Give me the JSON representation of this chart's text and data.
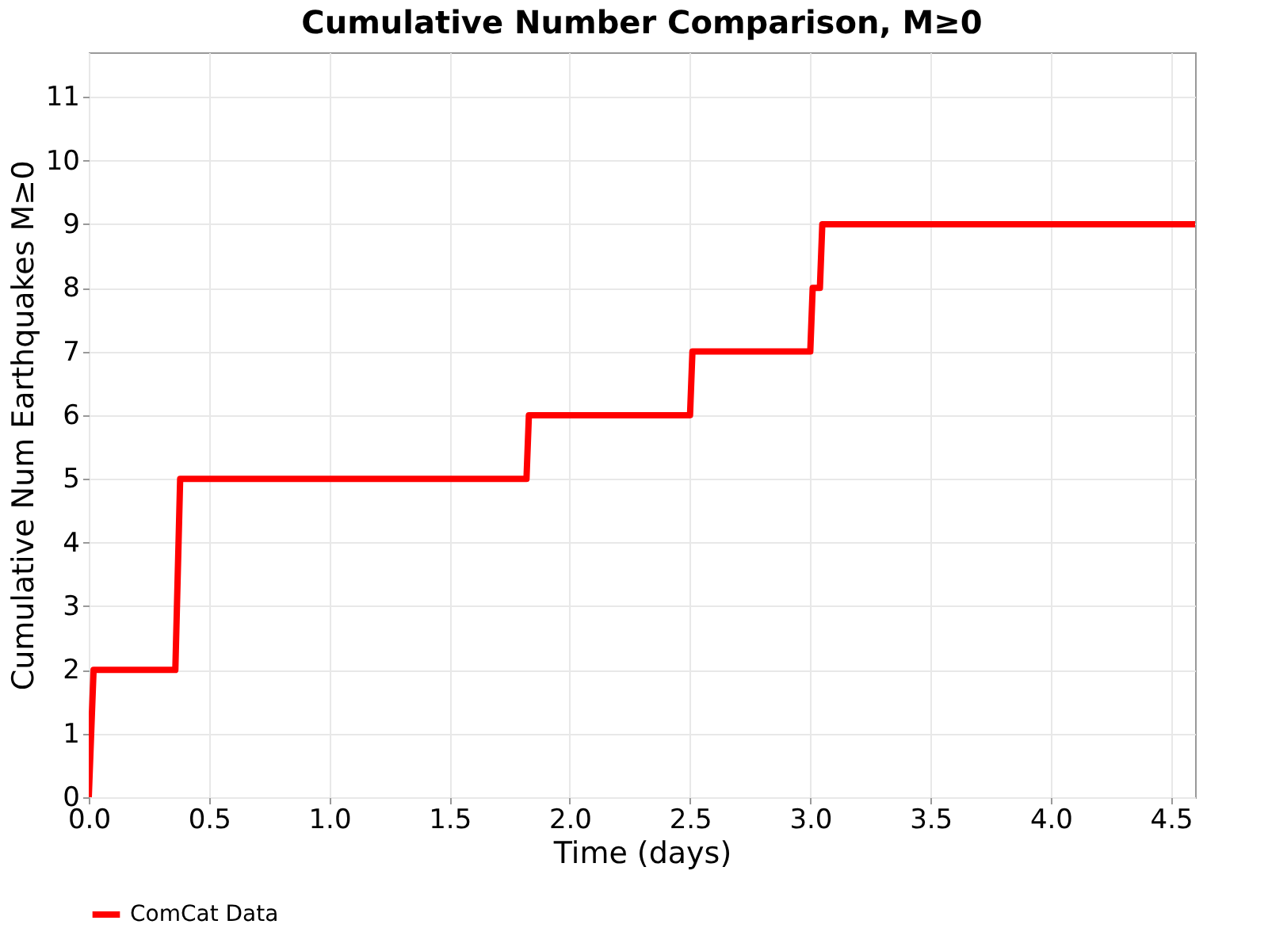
{
  "chart_data": {
    "type": "line",
    "title": "Cumulative Number Comparison, M≥0",
    "xlabel": "Time (days)",
    "ylabel": "Cumulative Num Earthquakes M≥0",
    "x": [
      0,
      0.01,
      0.02,
      0.36,
      0.38,
      1.82,
      1.83,
      2.5,
      2.51,
      3.0,
      3.01,
      3.04,
      3.05,
      4.6
    ],
    "series": [
      {
        "name": "ComCat Data",
        "color": "#ff0000",
        "values": [
          0,
          1,
          2,
          2,
          5,
          5,
          6,
          6,
          7,
          7,
          8,
          8,
          9,
          9
        ]
      }
    ],
    "xlim": [
      0,
      4.6
    ],
    "xticks": [
      {
        "value": 0,
        "label": "0.0"
      },
      0.5,
      {
        "value": 1,
        "label": "1.0"
      },
      1.5,
      {
        "value": 2,
        "label": "2.0"
      },
      2.5,
      {
        "value": 3,
        "label": "3.0"
      },
      3.5,
      {
        "value": 4,
        "label": "4.0"
      },
      4.5
    ],
    "ylim": [
      0,
      11.7
    ],
    "yticks": [
      0,
      1,
      2,
      3,
      4,
      5,
      6,
      7,
      8,
      9,
      10,
      11
    ],
    "grid": true,
    "legend": "bottom",
    "marker": "none",
    "line_style": "solid"
  }
}
